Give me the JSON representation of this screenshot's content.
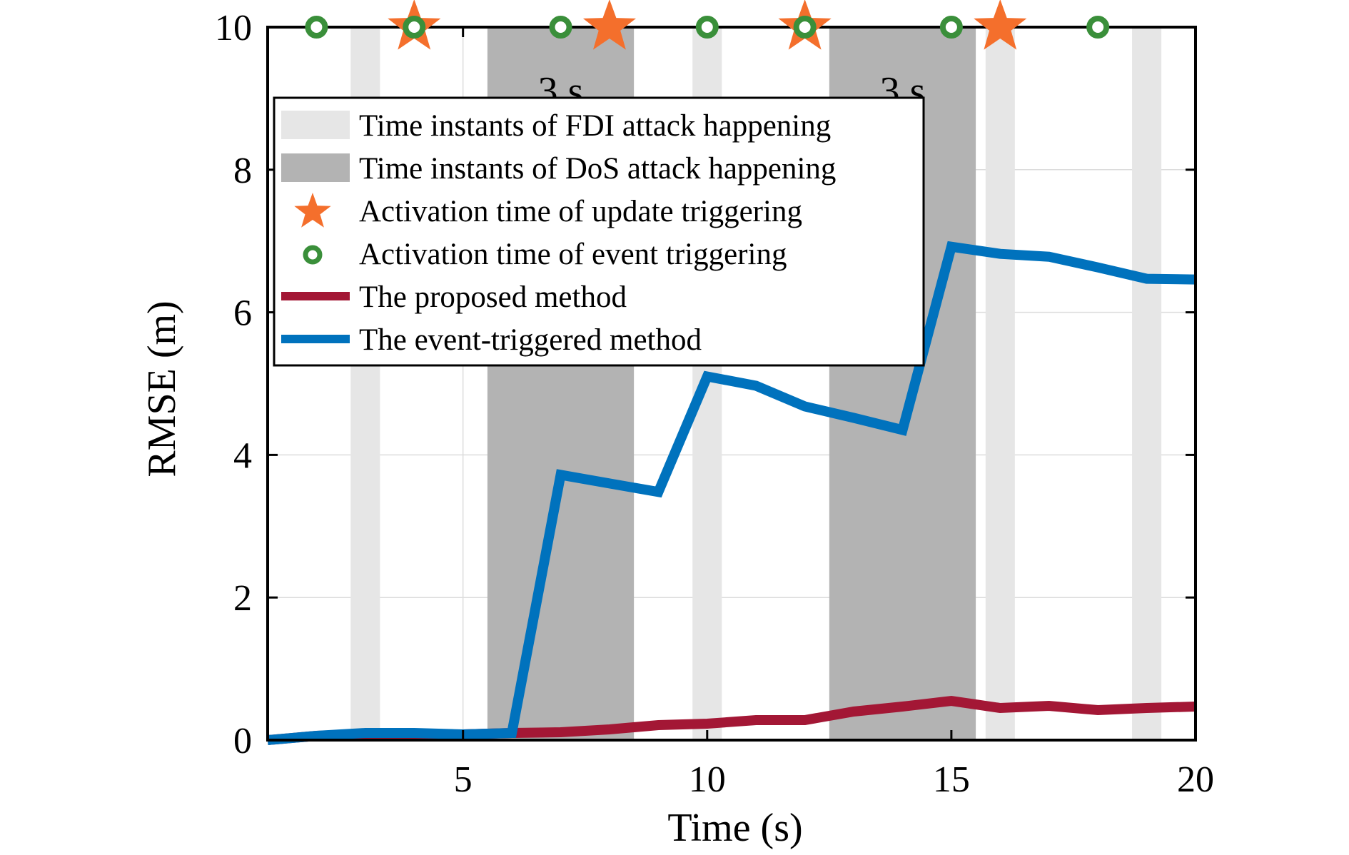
{
  "colors": {
    "fdi_band": "#e6e6e6",
    "dos_band": "#b3b3b3",
    "proposed": "#a31735",
    "event_triggered": "#0072bd",
    "star": "#f46f2c",
    "circle": "#3a8f3a",
    "grid": "#dcdcdc"
  },
  "chart_data": {
    "type": "line",
    "title": "",
    "xlabel": "Time (s)",
    "ylabel": "RMSE (m)",
    "xlim": [
      1,
      20
    ],
    "ylim": [
      0,
      10
    ],
    "xticks": [
      5,
      10,
      15,
      20
    ],
    "yticks": [
      0,
      2,
      4,
      6,
      8,
      10
    ],
    "grid": true,
    "legend_position": "top-left",
    "legend": [
      {
        "label": "Time instants of FDI attack happening",
        "kind": "fdi-band"
      },
      {
        "label": "Time instants of DoS attack happening",
        "kind": "dos-band"
      },
      {
        "label": "Activation time of update triggering",
        "kind": "star"
      },
      {
        "label": "Activation time of event triggering",
        "kind": "circle"
      },
      {
        "label": "The proposed method",
        "kind": "proposed-line"
      },
      {
        "label": "The event-triggered method",
        "kind": "event-line"
      }
    ],
    "fdi_intervals": [
      [
        2.7,
        3.3
      ],
      [
        9.7,
        10.3
      ],
      [
        15.7,
        16.3
      ],
      [
        18.7,
        19.3
      ]
    ],
    "dos_intervals": [
      [
        5.5,
        8.5
      ],
      [
        12.5,
        15.5
      ]
    ],
    "annotations": [
      {
        "text": "3 s",
        "x": 7.0,
        "y": 9.1
      },
      {
        "text": "3 s",
        "x": 14.0,
        "y": 9.1
      }
    ],
    "update_trigger_times": [
      4,
      8,
      12,
      16
    ],
    "event_trigger_times": [
      2,
      4,
      7,
      10,
      12,
      15,
      18
    ],
    "series": [
      {
        "name": "The proposed method",
        "x": [
          1,
          2,
          3,
          4,
          5,
          6,
          7,
          8,
          9,
          10,
          11,
          12,
          13,
          14,
          15,
          16,
          17,
          18,
          19,
          20
        ],
        "values": [
          0.0,
          0.06,
          0.08,
          0.08,
          0.08,
          0.1,
          0.11,
          0.15,
          0.21,
          0.23,
          0.28,
          0.28,
          0.4,
          0.47,
          0.55,
          0.45,
          0.48,
          0.42,
          0.45,
          0.47
        ]
      },
      {
        "name": "The event-triggered method",
        "x": [
          1,
          2,
          3,
          4,
          5,
          6,
          7,
          8,
          9,
          10,
          11,
          12,
          13,
          14,
          15,
          16,
          17,
          18,
          19,
          20
        ],
        "values": [
          0.0,
          0.06,
          0.1,
          0.1,
          0.08,
          0.1,
          3.72,
          3.6,
          3.48,
          5.1,
          4.97,
          4.68,
          4.52,
          4.35,
          6.92,
          6.82,
          6.78,
          6.63,
          6.47,
          6.46
        ]
      }
    ]
  }
}
